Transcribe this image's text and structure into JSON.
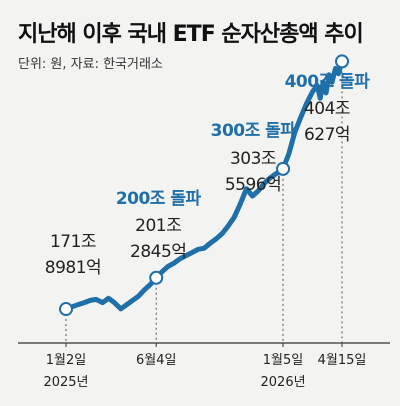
{
  "title": "지난해 이후 국내 ETF 순자산총액 추이",
  "source": "단위: 원, 자료: 한국거래소",
  "colors": {
    "line": "#1f6fa8",
    "marker_fill": "#ffffff",
    "marker_stroke": "#1f6fa8",
    "highlight_text": "#1f6fa8",
    "background": "#f3f3f1"
  },
  "chart_data": {
    "type": "line",
    "title": "지난해 이후 국내 ETF 순자산총액 추이",
    "ylabel": "",
    "xlabel": "",
    "grid": false,
    "legend": "none",
    "x_ticks": [
      {
        "label": "1월2일",
        "sub": "2025년",
        "date": "2025-01-02"
      },
      {
        "label": "6월4일",
        "sub": "",
        "date": "2025-06-04"
      },
      {
        "label": "1월5일",
        "sub": "2026년",
        "date": "2026-01-05"
      },
      {
        "label": "4월15일",
        "sub": "",
        "date": "2026-04-15"
      }
    ],
    "ylim": [
      140,
      420
    ],
    "series": [
      {
        "values": [
          [
            "2025-01-02",
            171.9
          ],
          [
            "2025-01-12",
            174
          ],
          [
            "2025-01-22",
            176
          ],
          [
            "2025-02-02",
            178
          ],
          [
            "2025-02-12",
            180
          ],
          [
            "2025-02-22",
            181
          ],
          [
            "2025-03-05",
            178
          ],
          [
            "2025-03-15",
            182
          ],
          [
            "2025-03-25",
            178
          ],
          [
            "2025-04-05",
            172
          ],
          [
            "2025-04-15",
            176
          ],
          [
            "2025-04-25",
            180
          ],
          [
            "2025-05-05",
            184
          ],
          [
            "2025-05-15",
            190
          ],
          [
            "2025-05-25",
            195
          ],
          [
            "2025-06-04",
            201.3
          ],
          [
            "2025-06-14",
            207
          ],
          [
            "2025-06-24",
            212
          ],
          [
            "2025-07-04",
            215
          ],
          [
            "2025-07-14",
            219
          ],
          [
            "2025-07-24",
            222
          ],
          [
            "2025-08-04",
            225
          ],
          [
            "2025-08-14",
            228
          ],
          [
            "2025-08-24",
            229
          ],
          [
            "2025-09-04",
            234
          ],
          [
            "2025-09-14",
            238
          ],
          [
            "2025-09-24",
            243
          ],
          [
            "2025-10-04",
            250
          ],
          [
            "2025-10-14",
            258
          ],
          [
            "2025-10-24",
            270
          ],
          [
            "2025-11-04",
            285
          ],
          [
            "2025-11-14",
            278
          ],
          [
            "2025-11-24",
            283
          ],
          [
            "2025-12-04",
            290
          ],
          [
            "2025-12-14",
            295
          ],
          [
            "2025-12-24",
            299
          ],
          [
            "2026-01-05",
            303.6
          ],
          [
            "2026-01-15",
            318
          ],
          [
            "2026-01-25",
            338
          ],
          [
            "2026-02-04",
            352
          ],
          [
            "2026-02-14",
            365
          ],
          [
            "2026-02-24",
            376
          ],
          [
            "2026-03-04",
            382
          ],
          [
            "2026-03-09",
            370
          ],
          [
            "2026-03-14",
            385
          ],
          [
            "2026-03-19",
            375
          ],
          [
            "2026-03-24",
            392
          ],
          [
            "2026-03-29",
            385
          ],
          [
            "2026-04-04",
            398
          ],
          [
            "2026-04-09",
            393
          ],
          [
            "2026-04-15",
            404.6
          ]
        ]
      }
    ],
    "annotations": [
      {
        "date": "2025-01-02",
        "value": 171.9,
        "headline": "",
        "lines": [
          "171조",
          "8981억"
        ]
      },
      {
        "date": "2025-06-04",
        "value": 201.3,
        "headline": "200조 돌파",
        "lines": [
          "201조",
          "2845억"
        ]
      },
      {
        "date": "2026-01-05",
        "value": 303.6,
        "headline": "300조 돌파",
        "lines": [
          "303조",
          "5596억"
        ]
      },
      {
        "date": "2026-04-15",
        "value": 404.6,
        "headline": "400조 돌파",
        "lines": [
          "404조",
          "627억"
        ]
      }
    ]
  }
}
